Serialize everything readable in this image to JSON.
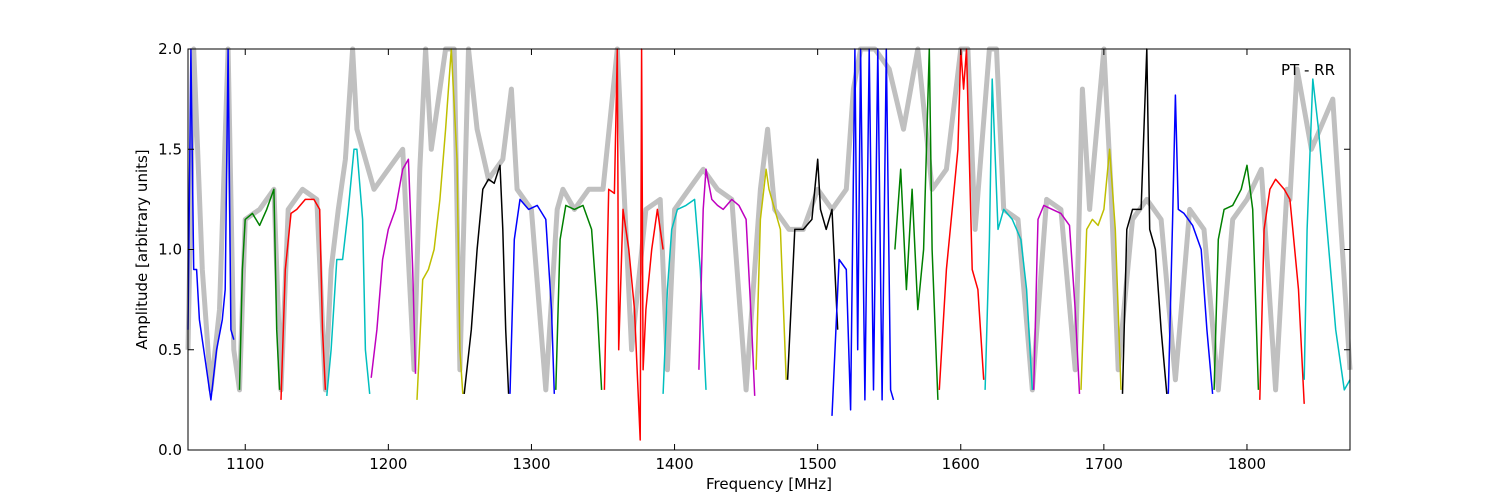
{
  "chart_data": {
    "type": "line",
    "title": "",
    "annotation": "PT - RR",
    "xlabel": "Frequency [MHz]",
    "ylabel": "Amplitude [arbitrary units]",
    "xlim": [
      1060,
      1872
    ],
    "ylim": [
      0.0,
      2.0
    ],
    "xticks": [
      1100,
      1200,
      1300,
      1400,
      1500,
      1600,
      1700,
      1800
    ],
    "xtick_labels": [
      "1100",
      "1200",
      "1300",
      "1400",
      "1500",
      "1600",
      "1700",
      "1800"
    ],
    "yticks": [
      0.0,
      0.5,
      1.0,
      1.5,
      2.0
    ],
    "ytick_labels": [
      "0.0",
      "0.5",
      "1.0",
      "1.5",
      "2.0"
    ],
    "grid": false,
    "background_color": "#c0c0c0",
    "background_trace": {
      "x": [
        1060,
        1064,
        1070,
        1076,
        1082,
        1088,
        1092,
        1096,
        1100,
        1110,
        1120,
        1125,
        1130,
        1140,
        1150,
        1156,
        1160,
        1165,
        1170,
        1175,
        1178,
        1182,
        1186,
        1190,
        1200,
        1210,
        1218,
        1222,
        1226,
        1230,
        1240,
        1246,
        1250,
        1256,
        1262,
        1270,
        1280,
        1286,
        1290,
        1300,
        1310,
        1318,
        1322,
        1330,
        1340,
        1350,
        1360,
        1370,
        1380,
        1390,
        1395,
        1400,
        1410,
        1420,
        1430,
        1440,
        1450,
        1460,
        1465,
        1470,
        1480,
        1490,
        1500,
        1510,
        1520,
        1525,
        1530,
        1540,
        1550,
        1560,
        1570,
        1580,
        1590,
        1600,
        1605,
        1610,
        1620,
        1625,
        1630,
        1640,
        1650,
        1660,
        1670,
        1680,
        1685,
        1690,
        1700,
        1705,
        1710,
        1720,
        1730,
        1740,
        1750,
        1760,
        1770,
        1780,
        1790,
        1800,
        1810,
        1820,
        1828,
        1830,
        1835,
        1845,
        1860,
        1872
      ],
      "y": [
        0.5,
        2.0,
        0.9,
        0.3,
        0.7,
        2.0,
        0.5,
        0.3,
        1.15,
        1.2,
        1.3,
        0.3,
        1.2,
        1.3,
        1.25,
        0.3,
        0.9,
        1.2,
        1.45,
        2.0,
        1.6,
        1.5,
        1.4,
        1.3,
        1.4,
        1.5,
        0.4,
        1.4,
        2.0,
        1.5,
        2.0,
        2.0,
        0.4,
        2.0,
        1.6,
        1.35,
        1.45,
        1.8,
        1.3,
        1.2,
        0.3,
        1.2,
        1.3,
        1.2,
        1.3,
        1.3,
        2.0,
        0.5,
        1.2,
        1.25,
        0.4,
        1.2,
        1.3,
        1.4,
        1.3,
        1.25,
        0.3,
        1.3,
        1.6,
        1.2,
        1.1,
        1.1,
        1.3,
        1.2,
        1.3,
        1.8,
        2.0,
        2.0,
        1.9,
        1.6,
        2.0,
        1.3,
        1.4,
        2.0,
        2.0,
        1.1,
        2.0,
        2.0,
        1.2,
        1.15,
        0.3,
        1.25,
        1.2,
        0.4,
        1.8,
        1.2,
        2.0,
        1.3,
        0.4,
        1.15,
        1.25,
        1.15,
        0.35,
        1.2,
        1.1,
        0.3,
        1.15,
        1.25,
        1.4,
        0.3,
        1.3,
        1.25,
        1.9,
        1.5,
        1.75,
        0.4
      ]
    },
    "series": [
      {
        "color": "#0000ff",
        "x": [
          1060,
          1062,
          1064,
          1066,
          1068,
          1072,
          1076,
          1080,
          1084,
          1086,
          1088,
          1090,
          1092
        ],
        "y": [
          0.6,
          2.0,
          0.9,
          0.9,
          0.65,
          0.45,
          0.25,
          0.5,
          0.65,
          0.8,
          2.0,
          0.6,
          0.55
        ]
      },
      {
        "color": "#008000",
        "x": [
          1096,
          1098,
          1100,
          1105,
          1110,
          1115,
          1120,
          1122,
          1124
        ],
        "y": [
          0.3,
          0.9,
          1.15,
          1.18,
          1.12,
          1.2,
          1.3,
          0.6,
          0.3
        ]
      },
      {
        "color": "#ff0000",
        "x": [
          1125,
          1128,
          1132,
          1136,
          1142,
          1148,
          1152,
          1154,
          1156
        ],
        "y": [
          0.25,
          0.9,
          1.18,
          1.2,
          1.25,
          1.25,
          1.2,
          0.6,
          0.3
        ]
      },
      {
        "color": "#00bfbf",
        "x": [
          1157,
          1160,
          1164,
          1168,
          1172,
          1176,
          1178,
          1182,
          1184,
          1187
        ],
        "y": [
          0.27,
          0.5,
          0.95,
          0.95,
          1.2,
          1.5,
          1.5,
          1.15,
          0.5,
          0.28
        ]
      },
      {
        "color": "#bf00bf",
        "x": [
          1188,
          1192,
          1196,
          1200,
          1205,
          1210,
          1214,
          1217,
          1219
        ],
        "y": [
          0.36,
          0.6,
          0.95,
          1.1,
          1.2,
          1.4,
          1.45,
          0.9,
          0.38
        ]
      },
      {
        "color": "#bfbf00",
        "x": [
          1220,
          1224,
          1228,
          1232,
          1236,
          1240,
          1244,
          1248,
          1250,
          1252
        ],
        "y": [
          0.25,
          0.85,
          0.9,
          1.0,
          1.25,
          1.6,
          2.0,
          1.45,
          0.5,
          0.28
        ]
      },
      {
        "color": "#000000",
        "x": [
          1253,
          1258,
          1262,
          1266,
          1270,
          1274,
          1278,
          1280,
          1282,
          1284
        ],
        "y": [
          0.28,
          0.6,
          1.0,
          1.3,
          1.35,
          1.33,
          1.42,
          1.1,
          0.6,
          0.28
        ]
      },
      {
        "color": "#0000ff",
        "x": [
          1285,
          1288,
          1292,
          1298,
          1304,
          1310,
          1314,
          1316
        ],
        "y": [
          0.28,
          1.05,
          1.25,
          1.2,
          1.22,
          1.15,
          0.7,
          0.28
        ]
      },
      {
        "color": "#008000",
        "x": [
          1317,
          1320,
          1324,
          1330,
          1336,
          1342,
          1346,
          1349
        ],
        "y": [
          0.3,
          1.05,
          1.22,
          1.2,
          1.22,
          1.1,
          0.7,
          0.3
        ]
      },
      {
        "color": "#ff0000",
        "x": [
          1351,
          1354,
          1358,
          1360,
          1361,
          1364,
          1368,
          1372,
          1376,
          1377,
          1378,
          1380,
          1384,
          1388,
          1392
        ],
        "y": [
          0.3,
          1.3,
          1.28,
          2.0,
          0.5,
          1.2,
          1.0,
          0.7,
          0.05,
          2.0,
          0.4,
          0.7,
          1.0,
          1.2,
          1.0
        ]
      },
      {
        "color": "#00bfbf",
        "x": [
          1392,
          1395,
          1398,
          1402,
          1408,
          1414,
          1418,
          1422
        ],
        "y": [
          0.28,
          0.8,
          1.1,
          1.2,
          1.22,
          1.25,
          0.9,
          0.3
        ]
      },
      {
        "color": "#bf00bf",
        "x": [
          1417,
          1420,
          1422,
          1426,
          1430,
          1434,
          1440,
          1445,
          1450,
          1454,
          1456
        ],
        "y": [
          0.4,
          1.2,
          1.4,
          1.25,
          1.22,
          1.2,
          1.25,
          1.22,
          1.15,
          0.6,
          0.27
        ]
      },
      {
        "color": "#bfbf00",
        "x": [
          1457,
          1460,
          1464,
          1466,
          1470,
          1474,
          1478
        ],
        "y": [
          0.4,
          1.15,
          1.4,
          1.3,
          1.2,
          1.1,
          0.35
        ]
      },
      {
        "color": "#000000",
        "x": [
          1479,
          1484,
          1490,
          1496,
          1500,
          1502,
          1506,
          1510,
          1514
        ],
        "y": [
          0.35,
          1.1,
          1.1,
          1.15,
          1.45,
          1.2,
          1.1,
          1.2,
          0.6
        ]
      },
      {
        "color": "#0000ff",
        "x": [
          1510,
          1515,
          1520,
          1523,
          1526,
          1528,
          1530,
          1533,
          1536,
          1539,
          1542,
          1545,
          1548,
          1551,
          1553
        ],
        "y": [
          0.17,
          0.95,
          0.9,
          0.2,
          2.0,
          0.5,
          2.0,
          0.25,
          2.0,
          0.3,
          2.0,
          0.25,
          2.0,
          0.3,
          0.25
        ]
      },
      {
        "color": "#008000",
        "x": [
          1554,
          1558,
          1562,
          1566,
          1570,
          1574,
          1578,
          1580,
          1584
        ],
        "y": [
          1.0,
          1.4,
          0.8,
          1.3,
          0.7,
          1.0,
          2.0,
          1.0,
          0.25
        ]
      },
      {
        "color": "#ff0000",
        "x": [
          1585,
          1590,
          1594,
          1598,
          1600,
          1602,
          1604,
          1608,
          1612,
          1616
        ],
        "y": [
          0.3,
          0.9,
          1.2,
          1.5,
          2.0,
          1.8,
          2.0,
          0.9,
          0.8,
          0.35
        ]
      },
      {
        "color": "#00bfbf",
        "x": [
          1617,
          1620,
          1622,
          1626,
          1630,
          1636,
          1642,
          1646,
          1650
        ],
        "y": [
          0.3,
          1.05,
          1.85,
          1.1,
          1.2,
          1.15,
          1.05,
          0.8,
          0.3
        ]
      },
      {
        "color": "#bf00bf",
        "x": [
          1651,
          1654,
          1658,
          1664,
          1670,
          1676,
          1680,
          1683
        ],
        "y": [
          0.3,
          1.15,
          1.22,
          1.2,
          1.18,
          1.12,
          0.7,
          0.28
        ]
      },
      {
        "color": "#bfbf00",
        "x": [
          1684,
          1688,
          1692,
          1696,
          1700,
          1704,
          1708,
          1712
        ],
        "y": [
          0.3,
          1.1,
          1.15,
          1.12,
          1.2,
          1.5,
          1.1,
          0.3
        ]
      },
      {
        "color": "#000000",
        "x": [
          1713,
          1716,
          1720,
          1726,
          1730,
          1732,
          1736,
          1740,
          1744
        ],
        "y": [
          0.28,
          1.1,
          1.2,
          1.2,
          2.0,
          1.1,
          1.0,
          0.6,
          0.28
        ]
      },
      {
        "color": "#0000ff",
        "x": [
          1745,
          1748,
          1750,
          1752,
          1756,
          1762,
          1768,
          1772,
          1776
        ],
        "y": [
          0.28,
          1.15,
          1.77,
          1.2,
          1.18,
          1.12,
          1.0,
          0.6,
          0.28
        ]
      },
      {
        "color": "#008000",
        "x": [
          1777,
          1780,
          1784,
          1790,
          1796,
          1800,
          1804,
          1808
        ],
        "y": [
          0.3,
          1.05,
          1.2,
          1.22,
          1.3,
          1.42,
          1.2,
          0.3
        ]
      },
      {
        "color": "#ff0000",
        "x": [
          1809,
          1812,
          1816,
          1820,
          1826,
          1830,
          1832,
          1836,
          1840
        ],
        "y": [
          0.25,
          1.1,
          1.3,
          1.35,
          1.3,
          1.25,
          1.1,
          0.8,
          0.23
        ]
      },
      {
        "color": "#00bfbf",
        "x": [
          1840,
          1842,
          1846,
          1850,
          1856,
          1862,
          1868,
          1872
        ],
        "y": [
          0.35,
          1.1,
          1.85,
          1.6,
          1.1,
          0.6,
          0.3,
          0.35
        ]
      }
    ]
  }
}
